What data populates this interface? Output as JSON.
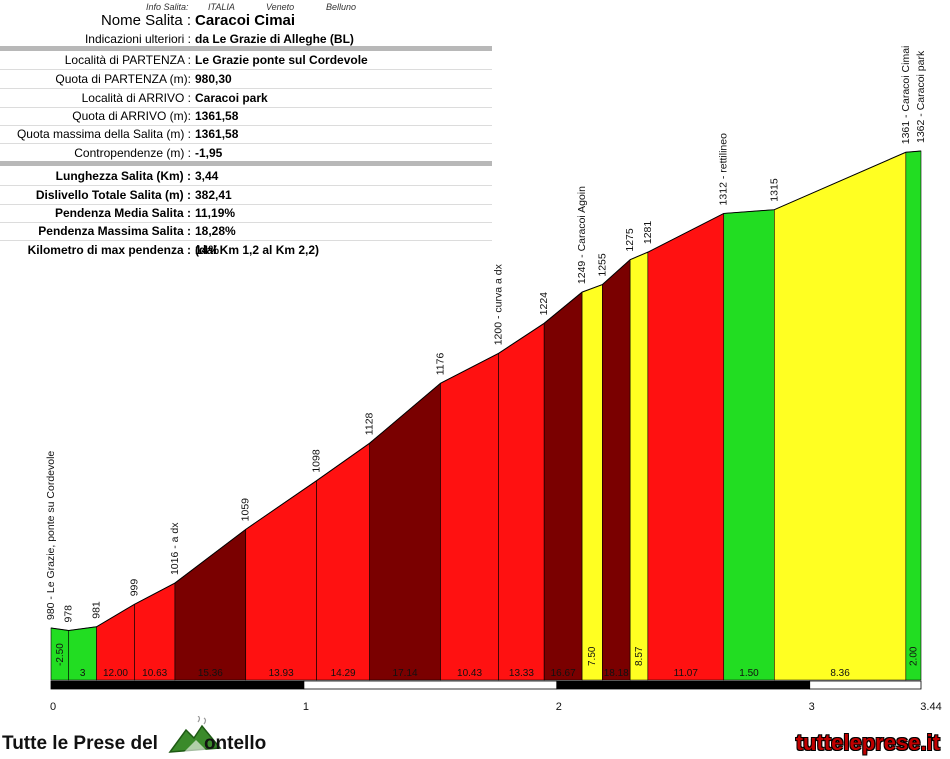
{
  "info": {
    "label": "Info Salita:",
    "country": "ITALIA",
    "region": "Veneto",
    "province": "Belluno"
  },
  "header": {
    "rows": [
      {
        "key": "Nome Salita :",
        "value": "Caracoi Cimai"
      },
      {
        "key": "Indicazioni ulteriori :",
        "value": "da Le Grazie di Alleghe (BL)"
      },
      {
        "key": "Località di PARTENZA :",
        "value": "Le Grazie ponte sul Cordevole"
      },
      {
        "key": "Quota di PARTENZA (m):",
        "value": "980,30"
      },
      {
        "key": "Località di ARRIVO :",
        "value": "Caracoi park"
      },
      {
        "key": "Quota di ARRIVO (m):",
        "value": "1361,58"
      },
      {
        "key": "Quota massima della Salita (m) :",
        "value": "1361,58"
      },
      {
        "key": "Contropendenze (m) :",
        "value": "-1,95"
      }
    ],
    "stats": [
      {
        "key": "Lunghezza Salita (Km) :",
        "value": "3,44"
      },
      {
        "key": "Dislivello Totale Salita (m) :",
        "value": "382,41"
      },
      {
        "key": "Pendenza Media Salita :",
        "value": "11,19%"
      },
      {
        "key": "Pendenza Massima Salita :",
        "value": "18,28%"
      },
      {
        "key": "Kilometro di max pendenza :",
        "value": "14%",
        "extra": "(dal Km 1,2 al Km 2,2)"
      }
    ]
  },
  "chart_data": {
    "type": "area",
    "title": "",
    "xlabel": "",
    "ylabel": "",
    "xlim": [
      0,
      3.44
    ],
    "x_ticks": [
      "0",
      "1",
      "2",
      "3",
      "3.44"
    ],
    "profile": [
      {
        "km": 0.0,
        "alt": 980
      },
      {
        "km": 0.07,
        "alt": 978
      },
      {
        "km": 0.18,
        "alt": 981
      },
      {
        "km": 0.33,
        "alt": 999
      },
      {
        "km": 0.49,
        "alt": 1016
      },
      {
        "km": 0.77,
        "alt": 1059
      },
      {
        "km": 1.05,
        "alt": 1098
      },
      {
        "km": 1.26,
        "alt": 1128
      },
      {
        "km": 1.54,
        "alt": 1176
      },
      {
        "km": 1.77,
        "alt": 1200
      },
      {
        "km": 1.95,
        "alt": 1224
      },
      {
        "km": 2.1,
        "alt": 1249
      },
      {
        "km": 2.18,
        "alt": 1255
      },
      {
        "km": 2.29,
        "alt": 1275
      },
      {
        "km": 2.36,
        "alt": 1281
      },
      {
        "km": 2.66,
        "alt": 1312
      },
      {
        "km": 2.86,
        "alt": 1315
      },
      {
        "km": 3.38,
        "alt": 1361
      },
      {
        "km": 3.44,
        "alt": 1362
      }
    ],
    "point_labels": [
      "980 - Le Grazie, ponte su Cordevole",
      "978",
      "981",
      "999",
      "1016 - a dx",
      "1059",
      "1098",
      "1128",
      "1176",
      "1200 - curva a dx",
      "1224",
      "1249 - Caracoi Agoin",
      "1255",
      "1275",
      "1281",
      "1312 - rettilineo",
      "1315",
      "1361 - Caracoi Cimai",
      "1362 - Caracoi park"
    ],
    "segment_gradients": [
      "-2.50",
      "3",
      "12.00",
      "10.63",
      "15.36",
      "13.93",
      "14.29",
      "17.14",
      "10.43",
      "13.33",
      "16.67",
      "7.50",
      "18.18",
      "8.57",
      "11.07",
      "1.50",
      "8.36",
      "2.00"
    ],
    "colors": {
      "green": "#22dd22",
      "yellow": "#ffff22",
      "red": "#ff1111",
      "darkred": "#7a0000"
    },
    "segment_colors": [
      "green",
      "green",
      "red",
      "red",
      "darkred",
      "red",
      "red",
      "darkred",
      "red",
      "red",
      "darkred",
      "yellow",
      "darkred",
      "yellow",
      "red",
      "green",
      "yellow",
      "green"
    ]
  },
  "footer": {
    "brand": "Tutte le Prese del",
    "brand_suffix": "ontello",
    "site": "tutteleprese.it"
  }
}
